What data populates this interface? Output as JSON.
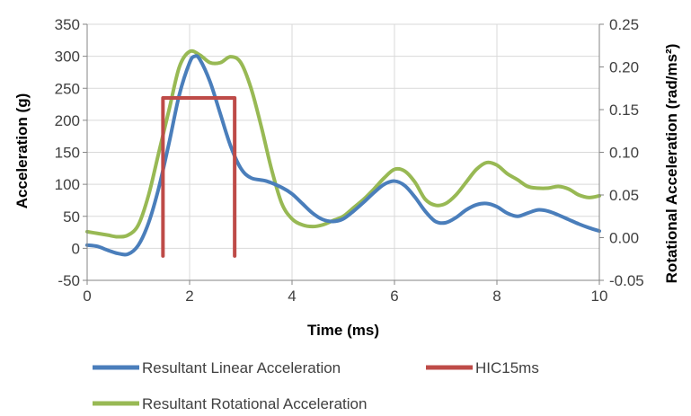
{
  "chart_data": {
    "type": "line",
    "xlabel": "Time (ms)",
    "ylabel": "Acceleration (g)",
    "y2label": "Rotational Acceleration (rad/ms²)",
    "xlim": [
      0,
      10
    ],
    "ylim": [
      -50,
      350
    ],
    "y2lim": [
      -0.05,
      0.25
    ],
    "x_ticks": [
      "0",
      "2",
      "4",
      "6",
      "8",
      "10"
    ],
    "y_ticks": [
      "-50",
      "0",
      "50",
      "100",
      "150",
      "200",
      "250",
      "300",
      "350"
    ],
    "y2_ticks": [
      "-0.05",
      "0.00",
      "0.05",
      "0.10",
      "0.15",
      "0.20",
      "0.25"
    ],
    "grid": true,
    "legend_position": "bottom",
    "series": [
      {
        "name": "Resultant Linear Acceleration",
        "color": "#4a7ebb",
        "axis": "left",
        "x": [
          0,
          0.2,
          0.4,
          0.6,
          0.8,
          1.0,
          1.2,
          1.4,
          1.6,
          1.8,
          2.0,
          2.1,
          2.2,
          2.4,
          2.6,
          2.8,
          3.0,
          3.2,
          3.5,
          3.8,
          4.0,
          4.2,
          4.4,
          4.6,
          4.8,
          5.0,
          5.2,
          5.4,
          5.6,
          5.8,
          6.0,
          6.2,
          6.4,
          6.6,
          6.8,
          7.0,
          7.2,
          7.4,
          7.6,
          7.8,
          8.0,
          8.2,
          8.4,
          8.6,
          8.8,
          9.0,
          9.2,
          9.4,
          9.6,
          9.8,
          10.0
        ],
        "values": [
          5,
          3,
          -3,
          -8,
          -9,
          5,
          40,
          95,
          165,
          240,
          290,
          300,
          295,
          260,
          210,
          160,
          125,
          110,
          105,
          95,
          85,
          70,
          55,
          45,
          42,
          46,
          58,
          72,
          87,
          100,
          105,
          98,
          80,
          58,
          42,
          40,
          48,
          60,
          68,
          70,
          65,
          55,
          50,
          55,
          60,
          58,
          52,
          45,
          38,
          32,
          27
        ]
      },
      {
        "name": "HIC15ms",
        "color": "#be4b48",
        "axis": "left",
        "x": [
          1.48,
          1.48,
          2.88,
          2.88
        ],
        "values": [
          -12,
          235,
          235,
          -12
        ]
      },
      {
        "name": "Resultant Rotational Acceleration",
        "color": "#98b954",
        "axis": "right",
        "x": [
          0,
          0.2,
          0.4,
          0.6,
          0.8,
          1.0,
          1.2,
          1.4,
          1.6,
          1.8,
          2.0,
          2.2,
          2.4,
          2.6,
          2.8,
          3.0,
          3.2,
          3.4,
          3.6,
          3.8,
          4.0,
          4.2,
          4.4,
          4.6,
          4.8,
          5.0,
          5.2,
          5.4,
          5.6,
          5.8,
          6.0,
          6.2,
          6.4,
          6.6,
          6.8,
          7.0,
          7.2,
          7.4,
          7.6,
          7.8,
          8.0,
          8.2,
          8.4,
          8.6,
          8.8,
          9.0,
          9.2,
          9.4,
          9.6,
          9.8,
          10.0
        ],
        "values": [
          0.007,
          0.005,
          0.003,
          0.001,
          0.003,
          0.015,
          0.05,
          0.1,
          0.15,
          0.2,
          0.218,
          0.214,
          0.205,
          0.205,
          0.212,
          0.205,
          0.175,
          0.13,
          0.08,
          0.04,
          0.022,
          0.015,
          0.013,
          0.015,
          0.02,
          0.025,
          0.035,
          0.045,
          0.057,
          0.07,
          0.08,
          0.078,
          0.065,
          0.045,
          0.038,
          0.04,
          0.05,
          0.065,
          0.08,
          0.088,
          0.085,
          0.075,
          0.068,
          0.06,
          0.058,
          0.058,
          0.06,
          0.057,
          0.05,
          0.047,
          0.049
        ]
      }
    ]
  }
}
